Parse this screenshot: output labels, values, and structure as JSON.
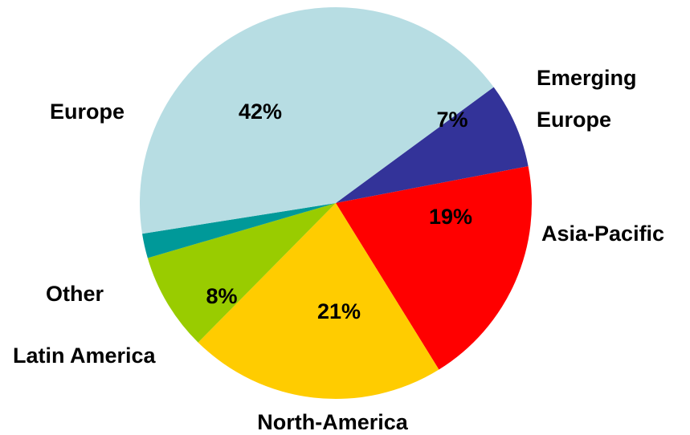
{
  "chart_data": {
    "type": "pie",
    "title": "",
    "slices": [
      {
        "category": "Emerging Europe",
        "category_lines": [
          "Emerging",
          "Europe"
        ],
        "value": 7,
        "value_label": "7%",
        "color": "#333399"
      },
      {
        "category": "Asia-Pacific",
        "category_lines": [
          "Asia-Pacific"
        ],
        "value": 19,
        "value_label": "19%",
        "color": "#ff0000"
      },
      {
        "category": "North-America",
        "category_lines": [
          "North-America"
        ],
        "value": 21,
        "value_label": "21%",
        "color": "#ffcc00"
      },
      {
        "category": "Latin America",
        "category_lines": [
          "Latin America"
        ],
        "value": 8,
        "value_label": "8%",
        "color": "#99cc00"
      },
      {
        "category": "Other",
        "category_lines": [
          "Other"
        ],
        "value": 2,
        "value_label": "",
        "color": "#009999"
      },
      {
        "category": "Europe",
        "category_lines": [
          "Europe"
        ],
        "value": 42,
        "value_label": "42%",
        "color": "#b7dde3"
      }
    ],
    "legend": "none"
  }
}
